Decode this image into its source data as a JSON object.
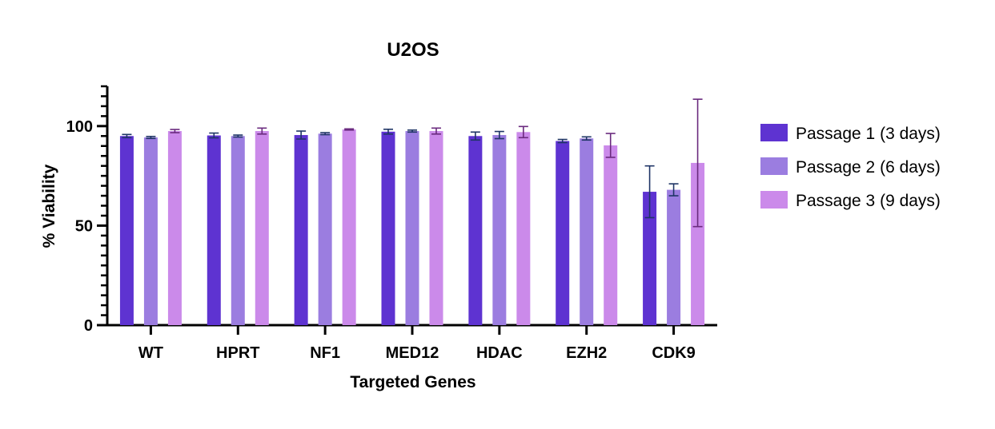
{
  "chart_data": {
    "type": "bar",
    "title": "U2OS",
    "xlabel": "Targeted Genes",
    "ylabel": "% Viability",
    "ylim": [
      0,
      120
    ],
    "yticks": [
      "0",
      "50",
      "100"
    ],
    "categories": [
      "WT",
      "HPRT",
      "NF1",
      "MED12",
      "HDAC",
      "EZH2",
      "CDK9"
    ],
    "series": [
      {
        "name": "Passage 1 (3 days)",
        "color": "#5e33d1",
        "values": [
          95,
          95.3,
          95.5,
          97.2,
          95,
          92.5,
          67
        ],
        "errors": [
          0.8,
          1.2,
          2,
          1.2,
          2,
          0.8,
          13
        ]
      },
      {
        "name": "Passage 2 (6 days)",
        "color": "#9b7de0",
        "values": [
          94.3,
          95,
          96.2,
          97.5,
          95.5,
          93.8,
          68
        ],
        "errors": [
          0.5,
          0.5,
          0.5,
          0.5,
          1.8,
          0.8,
          3
        ]
      },
      {
        "name": "Passage 3 (9 days)",
        "color": "#cb8aea",
        "values": [
          97.5,
          97.5,
          98.3,
          97.5,
          97,
          90.3,
          81.5
        ],
        "errors": [
          0.8,
          1.5,
          0.3,
          1.5,
          2.8,
          6,
          32
        ]
      }
    ],
    "grid": false,
    "legend": "right"
  }
}
